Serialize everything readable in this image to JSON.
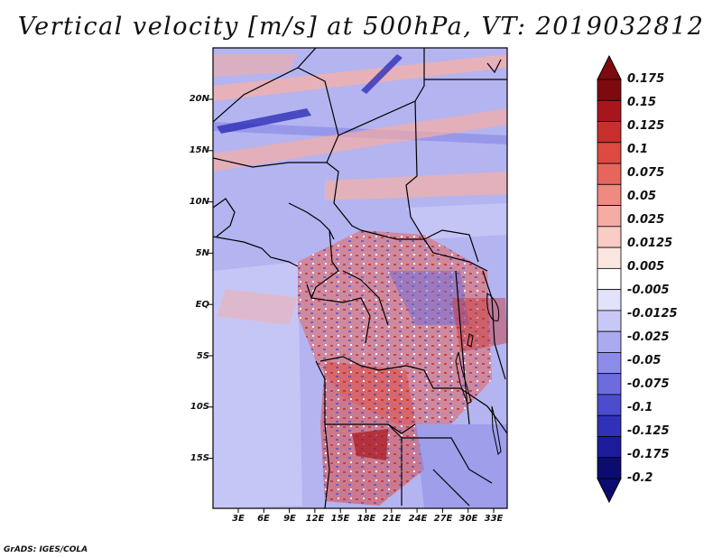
{
  "title": "Vertical velocity [m/s] at 500hPa, VT: 2019032812",
  "footer": "GrADS: IGES/COLA",
  "map": {
    "lat_labels": [
      "20N",
      "15N",
      "10N",
      "5N",
      "EQ",
      "5S",
      "10S",
      "15S"
    ],
    "lon_labels": [
      "3E",
      "6E",
      "9E",
      "12E",
      "15E",
      "18E",
      "21E",
      "24E",
      "27E",
      "30E",
      "33E"
    ]
  },
  "colorbar": {
    "labels": [
      "0.175",
      "0.15",
      "0.125",
      "0.1",
      "0.075",
      "0.05",
      "0.025",
      "0.0125",
      "0.005",
      "-0.005",
      "-0.0125",
      "-0.025",
      "-0.05",
      "-0.075",
      "-0.1",
      "-0.125",
      "-0.175",
      "-0.2"
    ],
    "colors": [
      "#7e0a10",
      "#a8161c",
      "#c8302e",
      "#dc4a42",
      "#e6665c",
      "#ee8a80",
      "#f5aca4",
      "#f9ccc6",
      "#fce6e2",
      "#ffffff",
      "#e2e2fa",
      "#c8c8f6",
      "#aaaaf0",
      "#8c8ce8",
      "#6c6cdc",
      "#4c4cce",
      "#3030b8",
      "#1c1c9a",
      "#0c0c70"
    ]
  }
}
